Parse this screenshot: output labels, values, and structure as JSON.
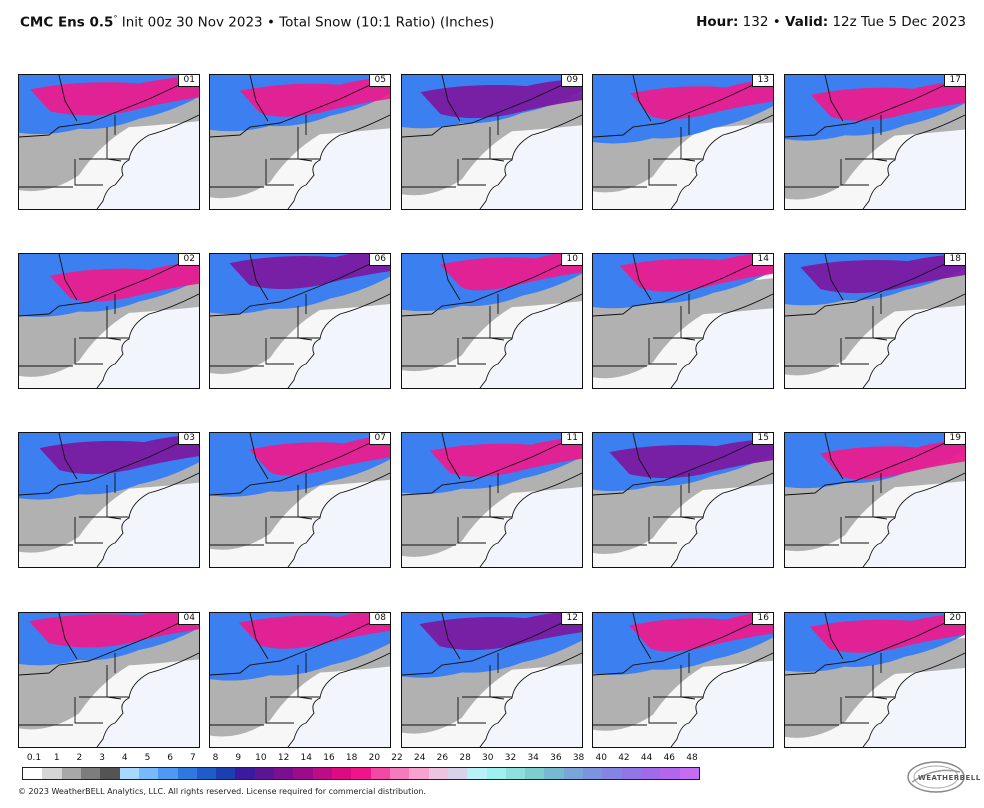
{
  "header": {
    "model": "CMC Ens 0.5",
    "init": "Init 00z 30 Nov 2023",
    "bullet": "•",
    "product": "Total Snow (10:1 Ratio) (Inches)",
    "hour_label": "Hour:",
    "hour_value": "132",
    "valid_label": "Valid:",
    "valid_value": "12z Tue 5 Dec 2023"
  },
  "panels": [
    [
      "01",
      "05",
      "09",
      "13",
      "17"
    ],
    [
      "02",
      "06",
      "10",
      "14",
      "18"
    ],
    [
      "03",
      "07",
      "11",
      "15",
      "19"
    ],
    [
      "04",
      "08",
      "12",
      "16",
      "20"
    ]
  ],
  "colorbar": {
    "ticks": [
      "0.1",
      "1",
      "2",
      "3",
      "4",
      "5",
      "6",
      "7",
      "8",
      "9",
      "10",
      "12",
      "14",
      "16",
      "18",
      "20",
      "22",
      "24",
      "26",
      "28",
      "30",
      "32",
      "34",
      "36",
      "38",
      "40",
      "42",
      "44",
      "46",
      "48"
    ],
    "colors": [
      "#ffffff",
      "#d6d6d6",
      "#a8a8a8",
      "#7d7d7d",
      "#545454",
      "#a8d8ff",
      "#79b8fb",
      "#4f98f3",
      "#2e78e0",
      "#1f5bc9",
      "#1c3fb0",
      "#3b1aa0",
      "#5a1494",
      "#7a0f8f",
      "#9b0c8a",
      "#bc0c86",
      "#dd0b82",
      "#f0148a",
      "#f24aa3",
      "#f47bbc",
      "#f6a3cf",
      "#eec3df",
      "#d8d3ea",
      "#b9f1f7",
      "#9ff1f0",
      "#8ee0de",
      "#7ccfcd",
      "#78b9d2",
      "#7aa5d8",
      "#7c93dd",
      "#8484e2",
      "#9176e6",
      "#9f6be8",
      "#b067ee",
      "#c36df2"
    ]
  },
  "footer": {
    "copyright": "© 2023 WeatherBELL Analytics, LLC. All rights reserved. License required for commercial distribution.",
    "logo_text": "WEATHERBELL"
  },
  "colors": {
    "background": "#ffffff",
    "ocean": "#f3f5fc",
    "border": "#111111"
  }
}
